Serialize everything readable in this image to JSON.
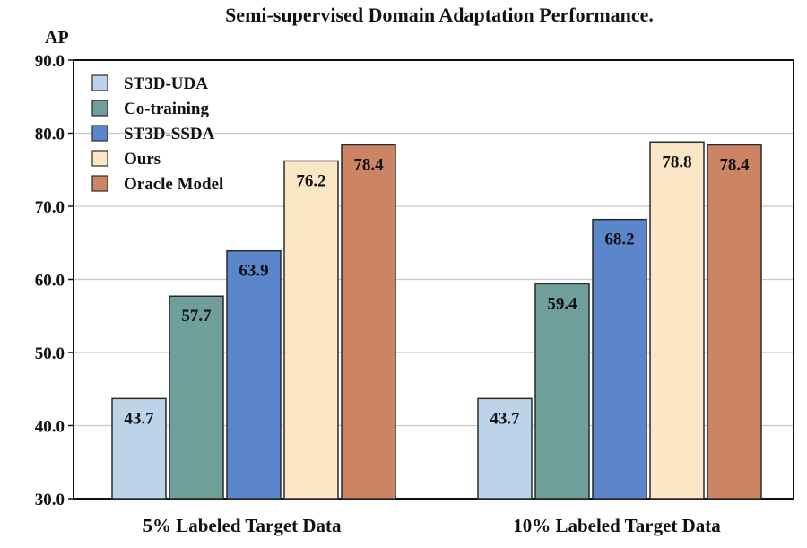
{
  "chart_data": {
    "type": "bar",
    "title": "Semi-supervised Domain Adaptation Performance.",
    "ylabel": "AP",
    "xlabel": "",
    "ylim": [
      30,
      90
    ],
    "yticks": [
      "30.0",
      "40.0",
      "50.0",
      "60.0",
      "70.0",
      "80.0",
      "90.0"
    ],
    "categories": [
      "5% Labeled Target Data",
      "10% Labeled Target Data"
    ],
    "grid": "horizontal",
    "legend_position": "top-left",
    "series": [
      {
        "name": "ST3D-UDA",
        "color": "#bcd4ea",
        "values": [
          43.7,
          43.7
        ],
        "labels": [
          "43.7",
          "43.7"
        ]
      },
      {
        "name": "Co-training",
        "color": "#6f9e9b",
        "values": [
          57.7,
          59.4
        ],
        "labels": [
          "57.7",
          "59.4"
        ]
      },
      {
        "name": "ST3D-SSDA",
        "color": "#5b86cb",
        "values": [
          63.9,
          68.2
        ],
        "labels": [
          "63.9",
          "68.2"
        ]
      },
      {
        "name": "Ours",
        "color": "#fbe7c6",
        "values": [
          76.2,
          78.8
        ],
        "labels": [
          "76.2",
          "78.8"
        ]
      },
      {
        "name": "Oracle Model",
        "color": "#cd8465",
        "values": [
          78.4,
          78.4
        ],
        "labels": [
          "78.4",
          "78.4"
        ]
      }
    ]
  }
}
